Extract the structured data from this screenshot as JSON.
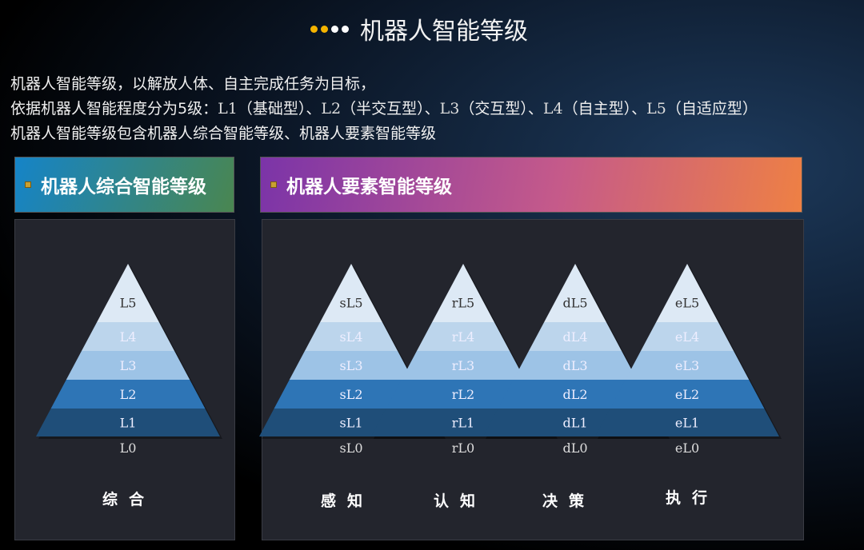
{
  "title": "机器人智能等级",
  "title_dot_colors": [
    "#f5b400",
    "#f5b400",
    "#ffffff",
    "#ffffff"
  ],
  "intro": {
    "line1": "机器人智能等级，以解放人体、自主完成任务为目标，",
    "line2_prefix": "依据机器人智能程度分为5级：",
    "levels": [
      {
        "code": "L1",
        "name": "（基础型）"
      },
      {
        "code": "L2",
        "name": "（半交互型）"
      },
      {
        "code": "L3",
        "name": "（交互型）"
      },
      {
        "code": "L4",
        "name": "（自主型）"
      },
      {
        "code": "L5",
        "name": "（自适应型）"
      }
    ],
    "sep": "、",
    "line3": "机器人智能等级包含机器人综合智能等级、机器人要素智能等级"
  },
  "left_panel": {
    "header": "机器人综合智能等级",
    "pyramid": {
      "labels": [
        "L5",
        "L4",
        "L3",
        "L2",
        "L1"
      ],
      "base_label": "L0",
      "category": "综合"
    }
  },
  "right_panel": {
    "header": "机器人要素智能等级",
    "pyramids": [
      {
        "labels": [
          "sL5",
          "sL4",
          "sL3",
          "sL2",
          "sL1"
        ],
        "base_label": "sL0",
        "category": "感知"
      },
      {
        "labels": [
          "rL5",
          "rL4",
          "rL3",
          "rL2",
          "rL1"
        ],
        "base_label": "rL0",
        "category": "认知"
      },
      {
        "labels": [
          "dL5",
          "dL4",
          "dL3",
          "dL2",
          "dL1"
        ],
        "base_label": "dL0",
        "category": "决策"
      },
      {
        "labels": [
          "eL5",
          "eL4",
          "eL3",
          "eL2",
          "eL1"
        ],
        "base_label": "eL0",
        "category": "执行"
      }
    ]
  },
  "band_colors": [
    "#dde9f5",
    "#bcd5ec",
    "#9dc3e6",
    "#2e75b6",
    "#1f4e79"
  ]
}
